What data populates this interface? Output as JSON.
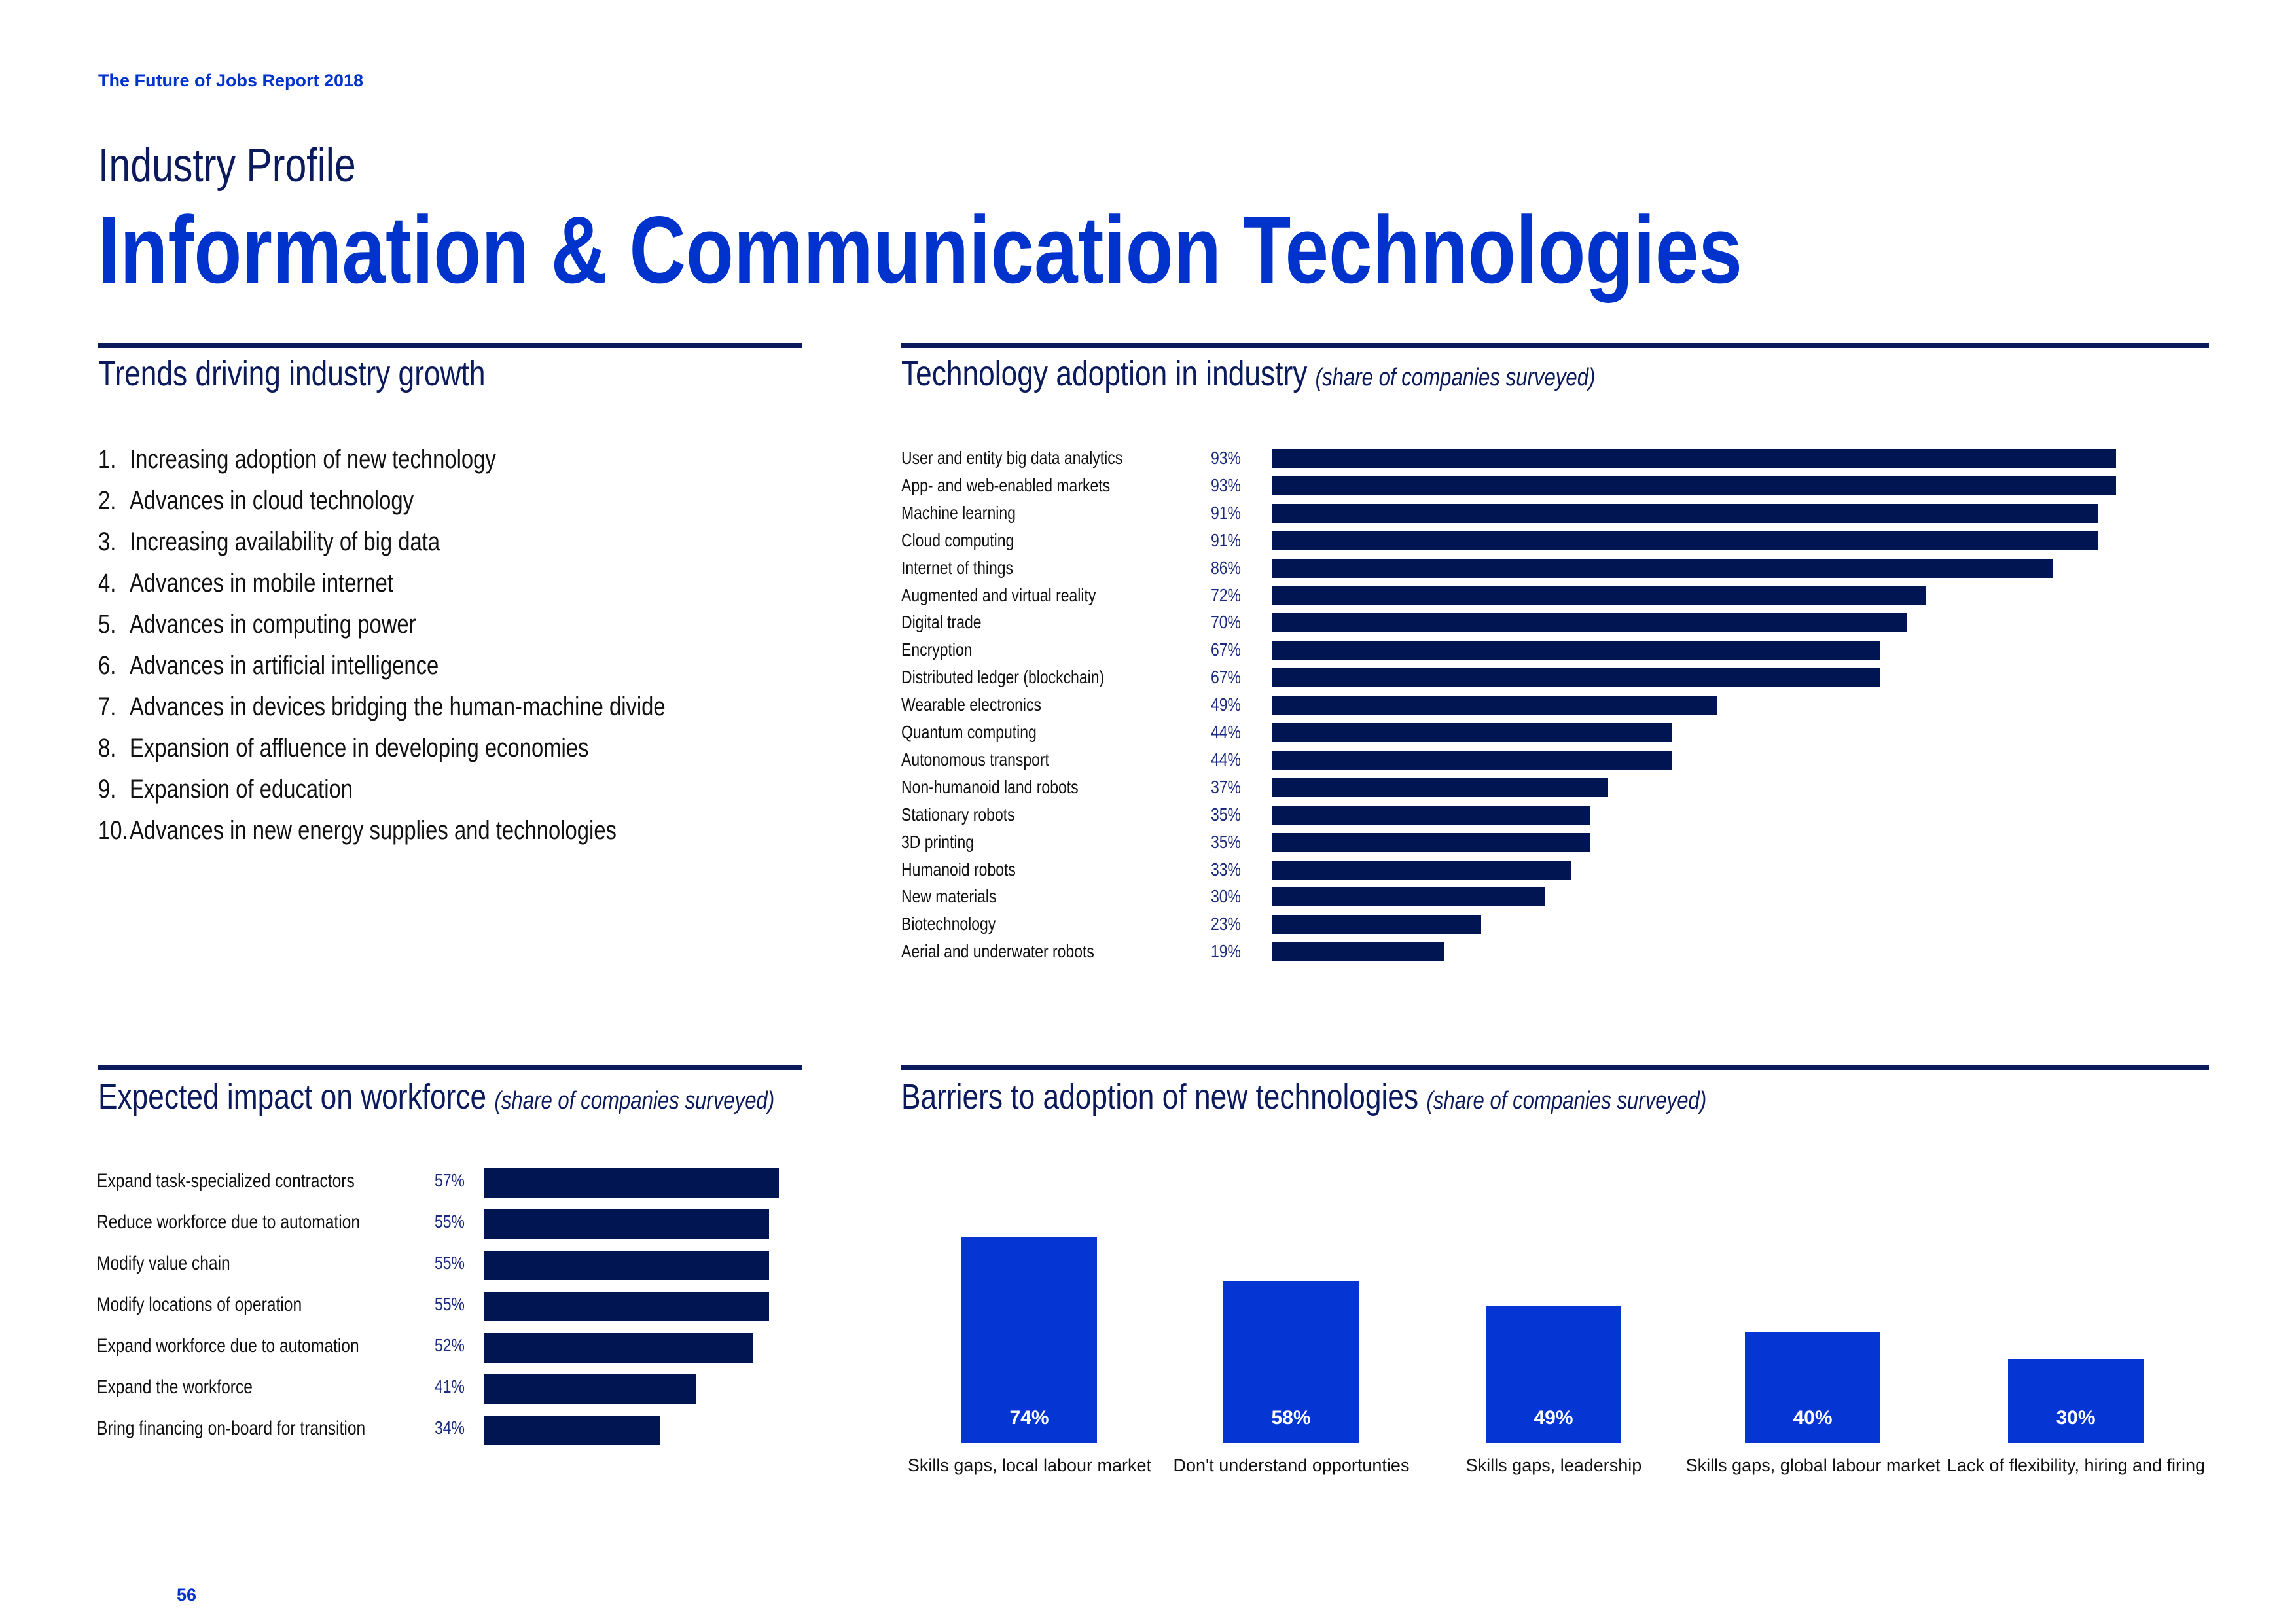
{
  "header": {
    "report": "The Future of Jobs Report 2018",
    "kicker": "Industry Profile",
    "title": "Information & Communication Technologies"
  },
  "trends": {
    "title": "Trends driving industry growth",
    "items": [
      "Increasing adoption of new technology",
      "Advances in cloud technology",
      "Increasing availability of big data",
      "Advances in mobile internet",
      "Advances in computing power",
      "Advances in artificial intelligence",
      "Advances in devices bridging the human-machine divide",
      "Expansion of affluence in developing economies",
      "Expansion of education",
      "Advances in new energy supplies and technologies"
    ]
  },
  "chart_data": [
    {
      "type": "bar",
      "orientation": "horizontal",
      "title": "Technology adoption in industry",
      "subtitle": "(share of companies surveyed)",
      "unit": "%",
      "xlim": [
        0,
        100
      ],
      "categories": [
        "User and entity big data analytics",
        "App- and web-enabled markets",
        "Machine learning",
        "Cloud computing",
        "Internet of things",
        "Augmented and virtual reality",
        "Digital trade",
        "Encryption",
        "Distributed ledger (blockchain)",
        "Wearable electronics",
        "Quantum computing",
        "Autonomous transport",
        "Non-humanoid land robots",
        "Stationary robots",
        "3D printing",
        "Humanoid robots",
        "New materials",
        "Biotechnology",
        "Aerial and underwater robots"
      ],
      "values": [
        93,
        93,
        91,
        91,
        86,
        72,
        70,
        67,
        67,
        49,
        44,
        44,
        37,
        35,
        35,
        33,
        30,
        23,
        19
      ],
      "color": "#021553"
    },
    {
      "type": "bar",
      "orientation": "horizontal",
      "title": "Expected impact on workforce",
      "subtitle": "(share of companies surveyed)",
      "unit": "%",
      "xlim": [
        0,
        100
      ],
      "categories": [
        "Expand task-specialized contractors",
        "Reduce workforce due to automation",
        "Modify value chain",
        "Modify locations of operation",
        "Expand workforce due to automation",
        "Expand the workforce",
        "Bring financing on-board for transition"
      ],
      "values": [
        57,
        55,
        55,
        55,
        52,
        41,
        34
      ],
      "color": "#021553"
    },
    {
      "type": "bar",
      "orientation": "vertical",
      "title": "Barriers to adoption of new technologies",
      "subtitle": "(share of companies surveyed)",
      "unit": "%",
      "ylim": [
        0,
        100
      ],
      "categories": [
        "Skills gaps, local labour market",
        "Don't understand opportunties",
        "Skills gaps, leadership",
        "Skills gaps, global labour market",
        "Lack of flexibility, hiring and firing"
      ],
      "values": [
        74,
        58,
        49,
        40,
        30
      ],
      "color": "#0536d4"
    }
  ],
  "footer": {
    "page": "56"
  }
}
